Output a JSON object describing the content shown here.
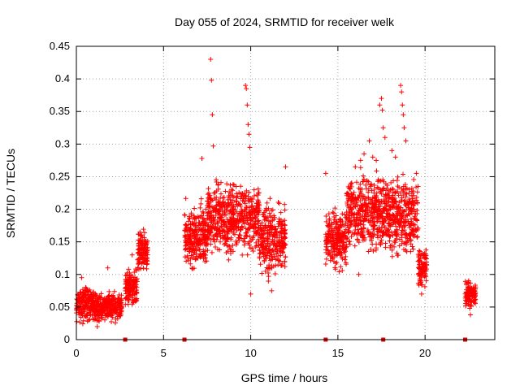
{
  "chart_data": {
    "type": "scatter",
    "title": "Day 055 of 2024, SRMTID for receiver welk",
    "xlabel": "GPS time / hours",
    "ylabel": "SRMTID / TECUs",
    "xlim": [
      0,
      24
    ],
    "ylim": [
      0,
      0.45
    ],
    "x_ticks": [
      0,
      5,
      10,
      15,
      20
    ],
    "x_tick_labels": [
      "0",
      "5",
      "10",
      "15",
      "20"
    ],
    "y_ticks": [
      0,
      0.05,
      0.1,
      0.15,
      0.2,
      0.25,
      0.3,
      0.35,
      0.4,
      0.45
    ],
    "y_tick_labels": [
      "0",
      "0.05",
      "0.1",
      "0.15",
      "0.2",
      "0.25",
      "0.3",
      "0.35",
      "0.4",
      "0.45"
    ],
    "grid": true,
    "marker": "+",
    "color": "#ff0000",
    "data_gap_markers_x": [
      2.8,
      6.2,
      14.3,
      17.6,
      22.3
    ],
    "series": [
      {
        "name": "SRMTID",
        "segments": [
          {
            "x_range": [
              0.0,
              1.0
            ],
            "y_center": 0.055,
            "y_spread": 0.025
          },
          {
            "x_range": [
              1.0,
              2.6
            ],
            "y_center": 0.05,
            "y_spread": 0.02
          },
          {
            "x_range": [
              2.8,
              3.5
            ],
            "y_center": 0.08,
            "y_spread": 0.025
          },
          {
            "x_range": [
              3.5,
              4.1
            ],
            "y_center": 0.135,
            "y_spread": 0.03
          },
          {
            "x_range": [
              6.2,
              7.5
            ],
            "y_center": 0.16,
            "y_spread": 0.045
          },
          {
            "x_range": [
              7.5,
              10.5
            ],
            "y_center": 0.185,
            "y_spread": 0.05
          },
          {
            "x_range": [
              10.5,
              12.0
            ],
            "y_center": 0.155,
            "y_spread": 0.05
          },
          {
            "x_range": [
              14.3,
              15.5
            ],
            "y_center": 0.155,
            "y_spread": 0.045
          },
          {
            "x_range": [
              15.5,
              17.6
            ],
            "y_center": 0.195,
            "y_spread": 0.055
          },
          {
            "x_range": [
              17.6,
              19.6
            ],
            "y_center": 0.19,
            "y_spread": 0.055
          },
          {
            "x_range": [
              19.6,
              20.1
            ],
            "y_center": 0.11,
            "y_spread": 0.03
          },
          {
            "x_range": [
              22.3,
              22.9
            ],
            "y_center": 0.07,
            "y_spread": 0.02
          }
        ],
        "peaks": [
          {
            "x": 7.7,
            "y": 0.43
          },
          {
            "x": 7.75,
            "y": 0.398
          },
          {
            "x": 7.8,
            "y": 0.345
          },
          {
            "x": 7.85,
            "y": 0.297
          },
          {
            "x": 7.2,
            "y": 0.278
          },
          {
            "x": 9.7,
            "y": 0.39
          },
          {
            "x": 9.75,
            "y": 0.385
          },
          {
            "x": 9.8,
            "y": 0.36
          },
          {
            "x": 9.85,
            "y": 0.33
          },
          {
            "x": 9.9,
            "y": 0.315
          },
          {
            "x": 9.95,
            "y": 0.295
          },
          {
            "x": 16.3,
            "y": 0.275
          },
          {
            "x": 16.5,
            "y": 0.285
          },
          {
            "x": 16.8,
            "y": 0.305
          },
          {
            "x": 17.0,
            "y": 0.28
          },
          {
            "x": 17.2,
            "y": 0.275
          },
          {
            "x": 17.4,
            "y": 0.36
          },
          {
            "x": 17.5,
            "y": 0.37
          },
          {
            "x": 17.55,
            "y": 0.352
          },
          {
            "x": 17.6,
            "y": 0.325
          },
          {
            "x": 17.7,
            "y": 0.31
          },
          {
            "x": 18.1,
            "y": 0.29
          },
          {
            "x": 18.3,
            "y": 0.28
          },
          {
            "x": 18.6,
            "y": 0.39
          },
          {
            "x": 18.65,
            "y": 0.38
          },
          {
            "x": 18.7,
            "y": 0.36
          },
          {
            "x": 18.75,
            "y": 0.345
          },
          {
            "x": 18.8,
            "y": 0.325
          },
          {
            "x": 18.9,
            "y": 0.305
          },
          {
            "x": 19.5,
            "y": 0.255
          },
          {
            "x": 12.0,
            "y": 0.265
          },
          {
            "x": 14.3,
            "y": 0.255
          },
          {
            "x": 16.0,
            "y": 0.265
          },
          {
            "x": 3.2,
            "y": 0.13
          },
          {
            "x": 1.8,
            "y": 0.11
          },
          {
            "x": 0.3,
            "y": 0.095
          },
          {
            "x": 10.0,
            "y": 0.07
          },
          {
            "x": 11.2,
            "y": 0.075
          },
          {
            "x": 19.8,
            "y": 0.07
          },
          {
            "x": 16.2,
            "y": 0.1
          },
          {
            "x": 22.6,
            "y": 0.038
          },
          {
            "x": 1.2,
            "y": 0.02
          }
        ]
      }
    ]
  }
}
